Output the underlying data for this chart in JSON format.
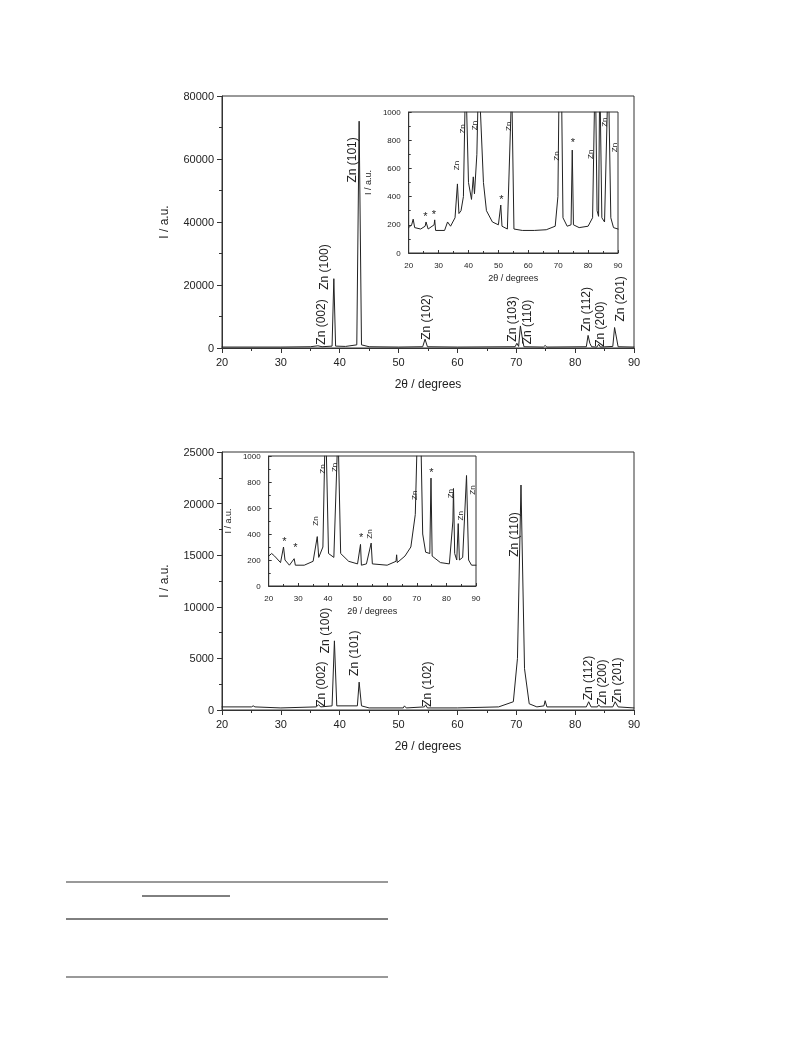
{
  "chart_data": [
    {
      "type": "line",
      "xlabel": "2θ / degrees",
      "ylabel": "I / a.u.",
      "xlim": [
        20,
        90
      ],
      "xticks": [
        20,
        30,
        40,
        50,
        60,
        70,
        80,
        90
      ],
      "ylim": [
        0,
        80000
      ],
      "yticks": [
        0,
        20000,
        40000,
        60000,
        80000
      ],
      "grid": false,
      "marker": "none",
      "series": [
        {
          "color": "#222222",
          "x": [
            20,
            30,
            35,
            36.3,
            37,
            38.7,
            39.0,
            39.3,
            41,
            42.9,
            43.3,
            43.7,
            45,
            50,
            54.1,
            54.5,
            54.9,
            60,
            69.8,
            70.1,
            70.4,
            70.7,
            71.0,
            71.3,
            74.6,
            74.9,
            75.2,
            81.9,
            82.2,
            82.5,
            82.8,
            83.7,
            84.0,
            84.3,
            86.4,
            86.7,
            87.0,
            87.3,
            90
          ],
          "values": [
            300,
            300,
            400,
            700,
            400,
            600,
            22000,
            600,
            500,
            1000,
            72000,
            1000,
            400,
            300,
            400,
            2800,
            400,
            300,
            400,
            1500,
            500,
            7000,
            3500,
            400,
            300,
            800,
            300,
            400,
            4000,
            1500,
            400,
            300,
            1200,
            300,
            500,
            6500,
            3500,
            400,
            300
          ]
        }
      ],
      "annotations": [
        "Zn (002)",
        "Zn (100)",
        "Zn (101)",
        "Zn (102)",
        "Zn (103)",
        "Zn (110)",
        "Zn (112)",
        "Zn (200)",
        "Zn (201)"
      ]
    },
    {
      "type": "line",
      "xlabel": "2θ / degrees",
      "ylabel": "I / a.u.",
      "xlim": [
        20,
        90
      ],
      "xticks": [
        20,
        30,
        40,
        50,
        60,
        70,
        80,
        90
      ],
      "ylim": [
        0,
        1000
      ],
      "yticks": [
        0,
        200,
        400,
        600,
        800,
        1000
      ],
      "grid": false,
      "marker": "none",
      "series": [
        {
          "color": "#222222",
          "x": [
            20,
            21,
            21.5,
            22,
            24,
            25.5,
            25.8,
            26.5,
            28.5,
            28.7,
            29,
            32,
            33,
            34,
            35.5,
            36.3,
            36.8,
            37.5,
            38.3,
            38.8,
            39.1,
            39.4,
            40,
            41,
            41.6,
            42,
            42.8,
            43.1,
            43.5,
            44,
            45,
            46,
            48,
            50,
            50.8,
            51.2,
            53,
            54.2,
            54.4,
            54.6,
            55.2,
            58,
            62,
            66,
            69,
            69.9,
            70.2,
            70.7,
            71.2,
            71.6,
            73,
            74.3,
            74.7,
            75.1,
            77,
            80,
            81.5,
            82.1,
            82.3,
            82.6,
            83,
            83.5,
            83.8,
            83.9,
            84.1,
            84.6,
            85.5,
            86.4,
            86.7,
            87,
            87.6,
            88.5,
            90
          ],
          "values": [
            180,
            200,
            240,
            180,
            170,
            190,
            220,
            170,
            200,
            235,
            160,
            160,
            220,
            190,
            250,
            490,
            280,
            300,
            400,
            1000,
            null,
            1000,
            500,
            380,
            540,
            420,
            700,
            1000,
            null,
            1000,
            500,
            300,
            220,
            200,
            340,
            190,
            170,
            1000,
            null,
            1000,
            170,
            160,
            160,
            165,
            190,
            400,
            1000,
            null,
            1000,
            250,
            190,
            200,
            730,
            200,
            180,
            190,
            250,
            1000,
            null,
            1000,
            300,
            260,
            1000,
            null,
            1000,
            250,
            220,
            1000,
            null,
            1000,
            250,
            180,
            170
          ]
        }
      ],
      "annotations": [
        "Zn",
        "Zn",
        "Zn",
        "Zn",
        "Zn",
        "Zn",
        "Zn",
        "Zn",
        "*",
        "*",
        "*",
        "*"
      ]
    },
    {
      "type": "line",
      "xlabel": "2θ / degrees",
      "ylabel": "I / a.u.",
      "xlim": [
        20,
        90
      ],
      "xticks": [
        20,
        30,
        40,
        50,
        60,
        70,
        80,
        90
      ],
      "ylim": [
        0,
        25000
      ],
      "yticks": [
        0,
        5000,
        10000,
        15000,
        20000,
        25000
      ],
      "grid": false,
      "marker": "none",
      "series": [
        {
          "color": "#222222",
          "x": [
            20,
            25,
            25.3,
            25.6,
            30,
            36,
            36.4,
            36.8,
            38.7,
            39.1,
            39.5,
            43,
            43.3,
            43.7,
            45,
            50.8,
            51,
            51.3,
            54.4,
            54.6,
            54.9,
            60,
            67,
            69.5,
            70.2,
            70.8,
            71.4,
            72.2,
            73.5,
            74.7,
            74.9,
            75.2,
            81.9,
            82.3,
            82.7,
            83.8,
            84,
            84.3,
            86.4,
            86.8,
            87.3,
            90
          ],
          "values": [
            300,
            300,
            400,
            300,
            200,
            300,
            500,
            300,
            400,
            6700,
            400,
            400,
            2700,
            400,
            200,
            200,
            400,
            200,
            300,
            500,
            200,
            200,
            300,
            800,
            5000,
            21800,
            4000,
            600,
            300,
            400,
            900,
            300,
            300,
            800,
            300,
            300,
            500,
            300,
            300,
            800,
            300,
            200
          ]
        }
      ],
      "annotations": [
        "Zn (002)",
        "Zn (100)",
        "Zn (101)",
        "Zn (102)",
        "Zn (110)",
        "Zn (112)",
        "Zn (200)",
        "Zn (201)"
      ]
    },
    {
      "type": "line",
      "xlabel": "2θ / degrees",
      "ylabel": "I / a.u.",
      "xlim": [
        20,
        90
      ],
      "xticks": [
        20,
        30,
        40,
        50,
        60,
        70,
        80,
        90
      ],
      "ylim": [
        0,
        1000
      ],
      "yticks": [
        0,
        200,
        400,
        600,
        800,
        1000
      ],
      "grid": false,
      "marker": "none",
      "series": [
        {
          "color": "#222222",
          "x": [
            20,
            21,
            22,
            24,
            25,
            25.5,
            27,
            28.6,
            29,
            32,
            35,
            36.4,
            36.9,
            38.3,
            38.9,
            39.2,
            39.5,
            40.2,
            42,
            43.1,
            43.3,
            43.6,
            44.3,
            47,
            50,
            51,
            51.3,
            53,
            54.6,
            55,
            60,
            63,
            63.2,
            63.4,
            66,
            68,
            69.5,
            70,
            70.7,
            71.5,
            72,
            73,
            74.4,
            74.8,
            75.2,
            78,
            81,
            82.2,
            82.4,
            82.8,
            83.5,
            84,
            84.4,
            85.5,
            86.8,
            87.5,
            88.5,
            90
          ],
          "values": [
            230,
            250,
            230,
            180,
            300,
            200,
            160,
            210,
            160,
            160,
            190,
            380,
            220,
            300,
            1000,
            null,
            1000,
            250,
            220,
            1000,
            null,
            1000,
            250,
            190,
            170,
            320,
            160,
            170,
            330,
            170,
            160,
            190,
            240,
            180,
            230,
            300,
            550,
            1000,
            null,
            1000,
            400,
            260,
            250,
            830,
            230,
            180,
            170,
            500,
            750,
            250,
            200,
            480,
            200,
            220,
            850,
            200,
            160,
            160
          ]
        }
      ],
      "annotations": [
        "Zn",
        "Zn",
        "Zn",
        "Zn",
        "Zn",
        "Zn",
        "Zn",
        "Zn",
        "*",
        "*",
        "*",
        "*"
      ]
    }
  ]
}
